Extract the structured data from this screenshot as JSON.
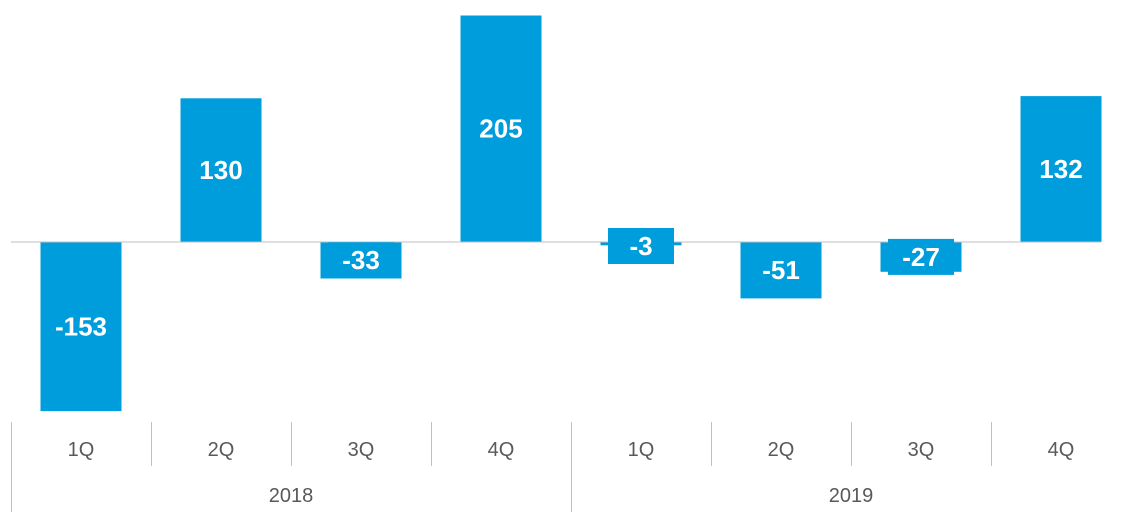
{
  "chart_data": {
    "type": "bar",
    "categories": [
      "1Q",
      "2Q",
      "3Q",
      "4Q",
      "1Q",
      "2Q",
      "3Q",
      "4Q"
    ],
    "groups": [
      {
        "label": "2018",
        "categories": [
          "1Q",
          "2Q",
          "3Q",
          "4Q"
        ]
      },
      {
        "label": "2019",
        "categories": [
          "1Q",
          "2Q",
          "3Q",
          "4Q"
        ]
      }
    ],
    "values": [
      -153,
      130,
      -33,
      205,
      -3,
      -51,
      -27,
      132
    ],
    "data_labels": [
      "-153",
      "130",
      "-33",
      "205",
      "-3",
      "-51",
      "-27",
      "132"
    ],
    "title": "",
    "xlabel": "",
    "ylabel": "",
    "ylim": [
      -153,
      205
    ],
    "grid": false,
    "legend": "none",
    "bar_color": "#009ddc",
    "axis_color": "#bfbfbf",
    "label_color": "#595959"
  }
}
